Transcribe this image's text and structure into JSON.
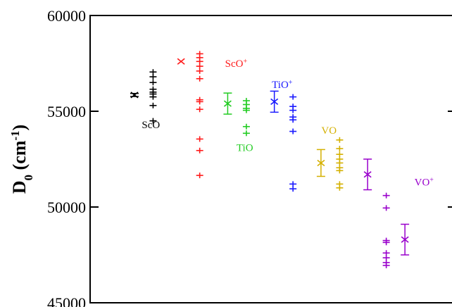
{
  "chart_data": {
    "type": "scatter",
    "title": "",
    "xlabel": "",
    "ylabel": {
      "main": "D",
      "sub": "0",
      "unit_open": " (cm",
      "unit_sup": "-1",
      "unit_close": ")"
    },
    "ylim": [
      45000,
      60000
    ],
    "yticks": [
      "45000",
      "50000",
      "55000",
      "60000"
    ],
    "grid": false,
    "series": [
      {
        "name": "ScO",
        "name_sup": "",
        "color": "#000000",
        "mean": {
          "x": 1.0,
          "y": 55850,
          "err": 80
        },
        "points_x": 1.4,
        "points": [
          57050,
          56800,
          56500,
          56150,
          56000,
          55900,
          55750,
          55300,
          54500
        ]
      },
      {
        "name": "ScO",
        "name_sup": "+",
        "color": "#ff1a1a",
        "mean": {
          "x": 2.0,
          "y": 57600,
          "err": 0
        },
        "points_x": 2.4,
        "points": [
          58000,
          57800,
          57600,
          57350,
          57100,
          56700,
          55600,
          55500,
          55100,
          53550,
          52950,
          51650
        ]
      },
      {
        "name": "TiO",
        "name_sup": "",
        "color": "#22cc22",
        "mean": {
          "x": 3.0,
          "y": 55400,
          "err": 550
        },
        "points_x": 3.4,
        "points": [
          55550,
          55350,
          55150,
          55050,
          54200,
          53850
        ]
      },
      {
        "name": "TiO",
        "name_sup": "+",
        "color": "#1a1aff",
        "mean": {
          "x": 4.0,
          "y": 55500,
          "err": 550
        },
        "points_x": 4.4,
        "points": [
          55750,
          55250,
          55050,
          54700,
          54550,
          53950,
          51200,
          50950
        ]
      },
      {
        "name": "VO",
        "name_sup": "",
        "color": "#d4b000",
        "mean": {
          "x": 5.0,
          "y": 52300,
          "err": 700
        },
        "points_x": 5.4,
        "points": [
          53500,
          53050,
          52750,
          52500,
          52300,
          52050,
          51900,
          51200,
          51000
        ]
      },
      {
        "name": "VO",
        "name_sup": "+",
        "color": "#9900cc",
        "mean": {
          "x": 6.0,
          "y": 51700,
          "err": 800
        },
        "points_x": 6.4,
        "points": [
          50600,
          49950,
          48250,
          48150,
          47600,
          47350,
          47100,
          46950
        ],
        "mean2": {
          "x": 6.8,
          "y": 48300,
          "err": 800
        }
      }
    ]
  }
}
